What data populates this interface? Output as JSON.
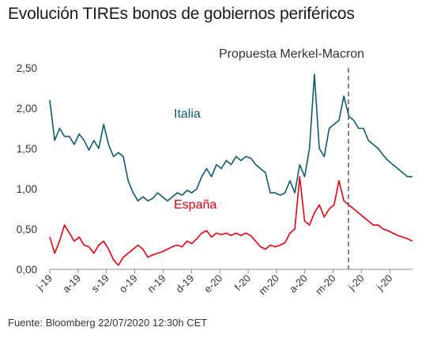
{
  "title": "Evolución TIREs bonos de gobiernos periféricos",
  "source": "Fuente: Bloomberg  22/07/2020 12:30h CET",
  "colors": {
    "italia": "#0f5a6e",
    "espana": "#e1000f",
    "event": "#666666",
    "axis": "#888888"
  },
  "chart_data": {
    "type": "line",
    "title": "Evolución TIREs bonos de gobiernos periféricos",
    "xlabel": "",
    "ylabel": "",
    "ylim": [
      0,
      2.5
    ],
    "yticks": [
      "0,00",
      "0,50",
      "1,00",
      "1,50",
      "2,00",
      "2,50"
    ],
    "xticks": [
      "j-19",
      "a-19",
      "s-19",
      "o-19",
      "n-19",
      "d-19",
      "e-20",
      "f-20",
      "m-20",
      "a-20",
      "m-20",
      "j-20",
      "j-20"
    ],
    "grid": false,
    "series": [
      {
        "name": "Italia",
        "values": [
          2.1,
          1.6,
          1.75,
          1.65,
          1.65,
          1.55,
          1.68,
          1.6,
          1.48,
          1.6,
          1.5,
          1.8,
          1.55,
          1.4,
          1.45,
          1.4,
          1.1,
          0.95,
          0.85,
          0.9,
          0.85,
          0.88,
          0.95,
          0.9,
          0.85,
          0.9,
          0.95,
          0.92,
          0.98,
          0.95,
          1.0,
          1.15,
          1.25,
          1.15,
          1.3,
          1.25,
          1.35,
          1.3,
          1.4,
          1.35,
          1.4,
          1.38,
          1.3,
          1.25,
          1.2,
          0.95,
          0.95,
          0.92,
          0.95,
          1.1,
          0.95,
          1.3,
          1.15,
          1.5,
          2.42,
          1.5,
          1.4,
          1.75,
          1.8,
          1.85,
          2.15,
          1.9,
          1.85,
          1.75,
          1.75,
          1.6,
          1.55,
          1.5,
          1.42,
          1.35,
          1.3,
          1.25,
          1.2,
          1.15,
          1.15
        ]
      },
      {
        "name": "España",
        "values": [
          0.4,
          0.2,
          0.35,
          0.55,
          0.45,
          0.35,
          0.4,
          0.3,
          0.28,
          0.2,
          0.3,
          0.35,
          0.25,
          0.12,
          0.05,
          0.15,
          0.2,
          0.25,
          0.3,
          0.25,
          0.15,
          0.18,
          0.2,
          0.22,
          0.25,
          0.28,
          0.3,
          0.28,
          0.35,
          0.32,
          0.38,
          0.45,
          0.48,
          0.4,
          0.45,
          0.43,
          0.45,
          0.42,
          0.45,
          0.42,
          0.45,
          0.42,
          0.35,
          0.28,
          0.25,
          0.3,
          0.28,
          0.3,
          0.33,
          0.45,
          0.5,
          1.15,
          0.6,
          0.55,
          0.7,
          0.8,
          0.65,
          0.75,
          0.8,
          1.1,
          0.85,
          0.8,
          0.75,
          0.7,
          0.65,
          0.6,
          0.55,
          0.55,
          0.5,
          0.48,
          0.45,
          0.42,
          0.4,
          0.38,
          0.35
        ]
      }
    ],
    "annotations": [
      {
        "label": "Italia",
        "series": "Italia"
      },
      {
        "label": "España",
        "series": "España"
      },
      {
        "label": "Propuesta Merkel-Macron",
        "type": "vertical-dashed-line"
      }
    ]
  }
}
